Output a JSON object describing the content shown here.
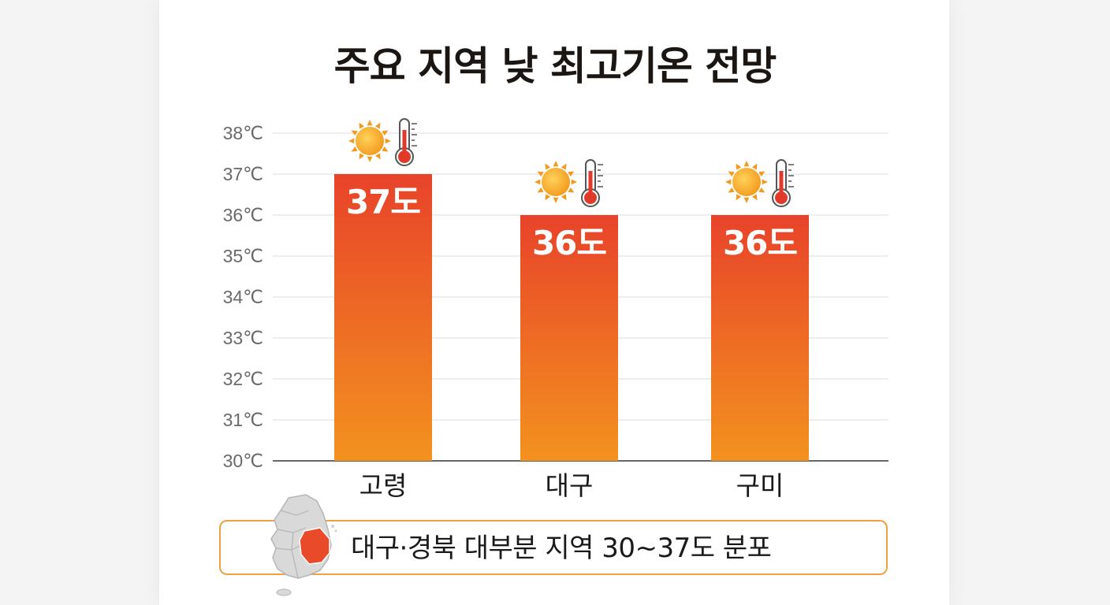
{
  "title": "주요 지역 낮 최고기온 전망",
  "chart_data": {
    "type": "bar",
    "categories": [
      "고령",
      "대구",
      "구미"
    ],
    "values": [
      37,
      36,
      36
    ],
    "data_labels": [
      "37도",
      "36도",
      "36도"
    ],
    "ylim": [
      30,
      38
    ],
    "yticks": [
      30,
      31,
      32,
      33,
      34,
      35,
      36,
      37,
      38
    ],
    "ytick_labels": [
      "30℃",
      "31℃",
      "32℃",
      "33℃",
      "34℃",
      "35℃",
      "36℃",
      "37℃",
      "38℃"
    ],
    "grid": true,
    "bar_gradient": [
      "#e8432a",
      "#f3921f"
    ],
    "mark_icons": [
      "sun-icon",
      "thermometer-icon"
    ]
  },
  "footer": {
    "text": "대구·경북 대부분 지역 30~37도 분포",
    "icon": "korea-map-icon",
    "highlight_color": "#e84a2a",
    "border_color": "#f0a043"
  }
}
